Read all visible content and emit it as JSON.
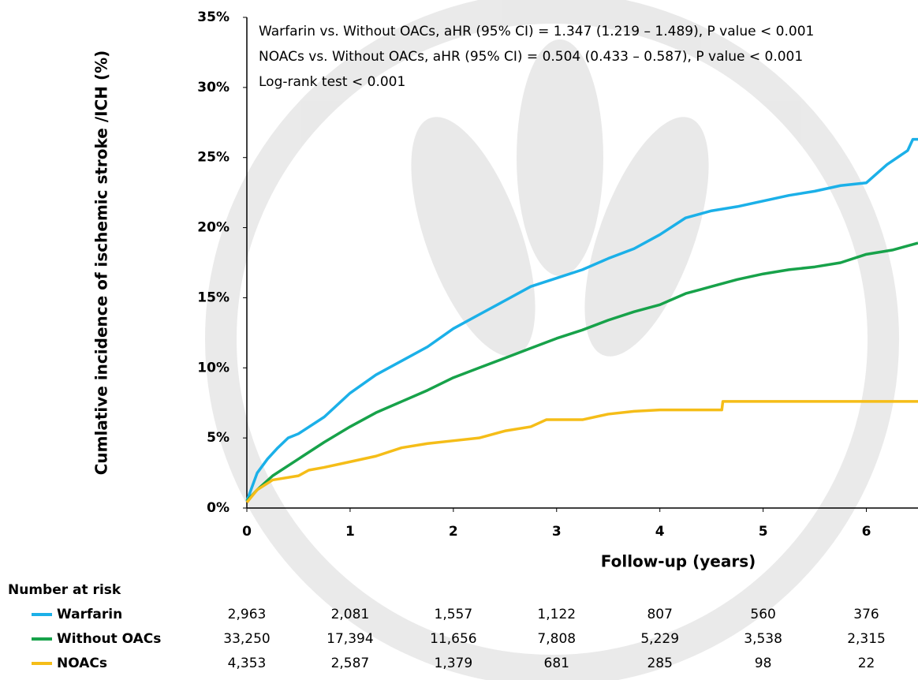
{
  "chart_data": {
    "type": "line",
    "annotations": [
      "Warfarin vs. Without OACs, aHR (95% CI) = 1.347 (1.219 – 1.489), P value < 0.001",
      "NOACs vs. Without OACs, aHR (95% CI) = 0.504 (0.433 – 0.587), P value < 0.001",
      "Log-rank test < 0.001"
    ],
    "x_label": "Follow-up (years)",
    "y_label": "Cumlative incidence of ischemic stroke /ICH (%)",
    "xlim": [
      0,
      6.5
    ],
    "xticks": [
      0,
      1,
      2,
      3,
      4,
      5,
      6
    ],
    "ylim": [
      0,
      35
    ],
    "yticks": [
      {
        "value": 0,
        "label": "0%"
      },
      {
        "value": 5,
        "label": "5%"
      },
      {
        "value": 10,
        "label": "10%"
      },
      {
        "value": 15,
        "label": "15%"
      },
      {
        "value": 20,
        "label": "20%"
      },
      {
        "value": 25,
        "label": "25%"
      },
      {
        "value": 30,
        "label": "30%"
      },
      {
        "value": 35,
        "label": "35%"
      }
    ],
    "grid": false,
    "series": [
      {
        "name": "Warfarin",
        "color": "#1bb0e8",
        "x": [
          0,
          0.1,
          0.2,
          0.3,
          0.4,
          0.5,
          0.75,
          1.0,
          1.25,
          1.5,
          1.75,
          2.0,
          2.25,
          2.5,
          2.75,
          3.0,
          3.25,
          3.5,
          3.75,
          4.0,
          4.25,
          4.5,
          4.75,
          5.0,
          5.25,
          5.5,
          5.75,
          6.0,
          6.2,
          6.4,
          6.45,
          6.5
        ],
        "values": [
          0.5,
          2.5,
          3.5,
          4.3,
          5,
          5.3,
          6.5,
          8.2,
          9.5,
          10.5,
          11.5,
          12.8,
          13.8,
          14.8,
          15.8,
          16.4,
          17,
          17.8,
          18.5,
          19.5,
          20.7,
          21.2,
          21.5,
          21.9,
          22.3,
          22.6,
          23,
          23.2,
          24.5,
          25.5,
          26.3,
          26.3
        ]
      },
      {
        "name": "Without OACs",
        "color": "#17a24a",
        "x": [
          0,
          0.1,
          0.25,
          0.5,
          0.75,
          1.0,
          1.25,
          1.5,
          1.75,
          2.0,
          2.25,
          2.5,
          2.75,
          3.0,
          3.25,
          3.5,
          3.75,
          4.0,
          4.25,
          4.5,
          4.75,
          5.0,
          5.25,
          5.5,
          5.75,
          6.0,
          6.25,
          6.5
        ],
        "values": [
          0.5,
          1.3,
          2.3,
          3.5,
          4.7,
          5.8,
          6.8,
          7.6,
          8.4,
          9.3,
          10,
          10.7,
          11.4,
          12.1,
          12.7,
          13.4,
          14,
          14.5,
          15.3,
          15.8,
          16.3,
          16.7,
          17,
          17.2,
          17.5,
          18.1,
          18.4,
          18.9
        ]
      },
      {
        "name": "NOACs",
        "color": "#f5bd18",
        "x": [
          0,
          0.1,
          0.25,
          0.5,
          0.6,
          0.75,
          1.0,
          1.25,
          1.5,
          1.75,
          2.0,
          2.25,
          2.5,
          2.75,
          2.9,
          3.25,
          3.5,
          3.75,
          4.0,
          4.6,
          4.61,
          5.0,
          6.5
        ],
        "values": [
          0.4,
          1.3,
          2.0,
          2.3,
          2.7,
          2.9,
          3.3,
          3.7,
          4.3,
          4.6,
          4.8,
          5.0,
          5.5,
          5.8,
          6.3,
          6.3,
          6.7,
          6.9,
          7.0,
          7.0,
          7.6,
          7.6,
          7.6
        ]
      }
    ],
    "risk_table": {
      "title": "Number at risk",
      "rows": [
        [
          "2,963",
          "2,081",
          "1,557",
          "1,122",
          "807",
          "560",
          "376"
        ],
        [
          "33,250",
          "17,394",
          "11,656",
          "7,808",
          "5,229",
          "3,538",
          "2,315"
        ],
        [
          "4,353",
          "2,587",
          "1,379",
          "681",
          "285",
          "98",
          "22"
        ]
      ]
    }
  }
}
